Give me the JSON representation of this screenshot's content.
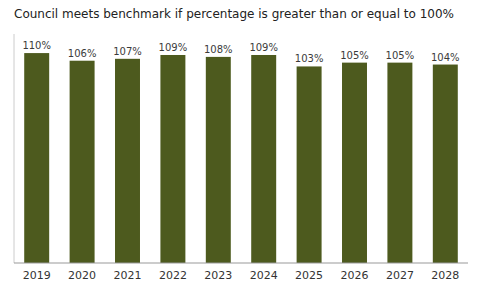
{
  "chart_data": {
    "type": "bar",
    "title": "Council meets benchmark if percentage is greater than or equal to 100%",
    "categories": [
      "2019",
      "2020",
      "2021",
      "2022",
      "2023",
      "2024",
      "2025",
      "2026",
      "2027",
      "2028"
    ],
    "values": [
      110,
      106,
      107,
      109,
      108,
      109,
      103,
      105,
      105,
      104
    ],
    "value_labels": [
      "110%",
      "106%",
      "107%",
      "109%",
      "108%",
      "109%",
      "103%",
      "105%",
      "105%",
      "104%"
    ],
    "data_labels": true,
    "color": "#4d5a1e",
    "ylim": [
      0,
      120
    ],
    "yticks": [],
    "tick_labels": "x",
    "grid": false
  }
}
